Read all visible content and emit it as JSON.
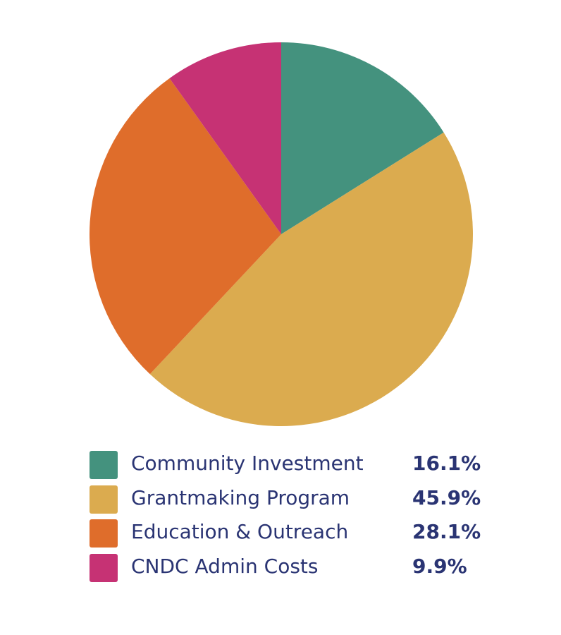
{
  "chart_data": {
    "type": "pie",
    "slices": [
      {
        "label": "Community Investment",
        "value": 16.1,
        "display": "16.1%",
        "color": "#44927e"
      },
      {
        "label": "Grantmaking Program",
        "value": 45.9,
        "display": "45.9%",
        "color": "#dbab4f"
      },
      {
        "label": "Education & Outreach",
        "value": 28.1,
        "display": "28.1%",
        "color": "#df6d2b"
      },
      {
        "label": "CNDC Admin Costs",
        "value": 9.9,
        "display": "9.9%",
        "color": "#c63274"
      }
    ],
    "legend_position": "bottom"
  }
}
